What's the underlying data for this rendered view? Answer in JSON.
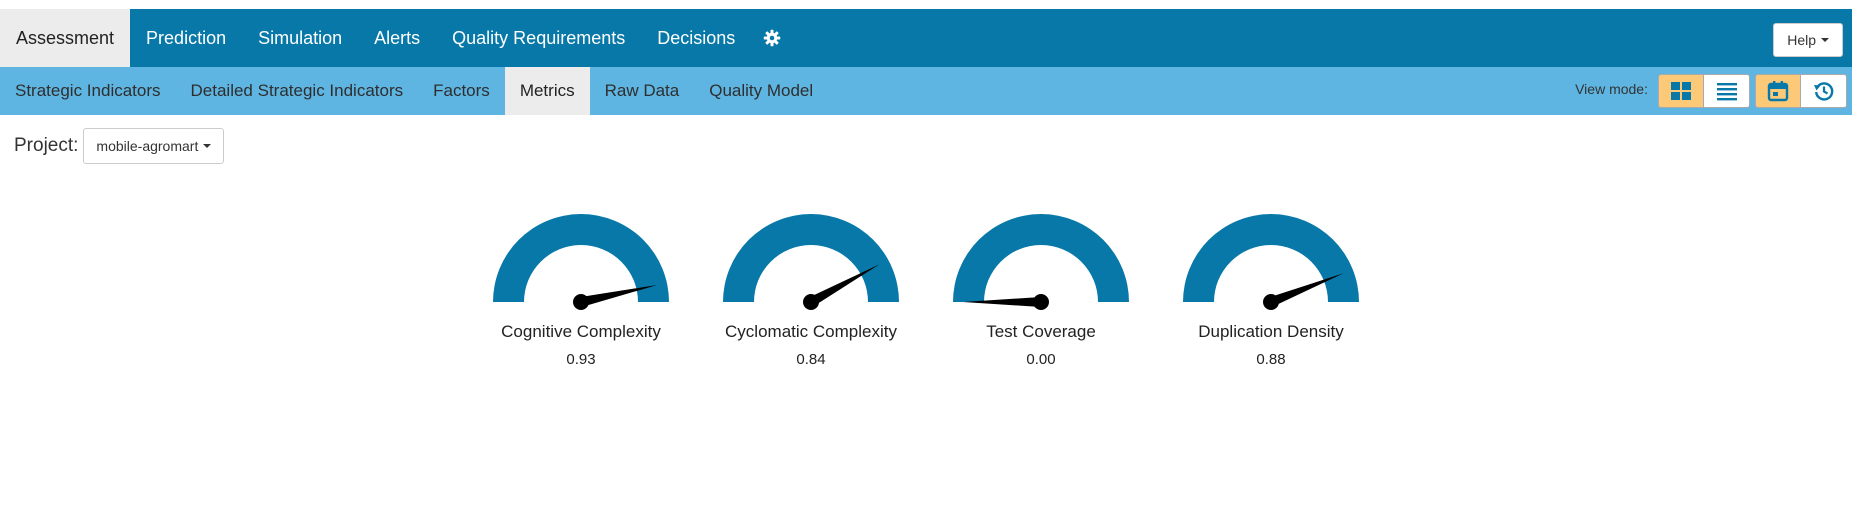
{
  "top_nav": {
    "items": [
      {
        "label": "Assessment",
        "active": true
      },
      {
        "label": "Prediction",
        "active": false
      },
      {
        "label": "Simulation",
        "active": false
      },
      {
        "label": "Alerts",
        "active": false
      },
      {
        "label": "Quality Requirements",
        "active": false
      },
      {
        "label": "Decisions",
        "active": false
      }
    ],
    "settings_icon": "gear-icon",
    "help_label": "Help"
  },
  "sub_nav": {
    "items": [
      {
        "label": "Strategic Indicators",
        "active": false
      },
      {
        "label": "Detailed Strategic Indicators",
        "active": false
      },
      {
        "label": "Factors",
        "active": false
      },
      {
        "label": "Metrics",
        "active": true
      },
      {
        "label": "Raw Data",
        "active": false
      },
      {
        "label": "Quality Model",
        "active": false
      }
    ],
    "view_mode_label": "View mode:",
    "view_mode_icons": [
      "grid-icon",
      "list-icon",
      "calendar-icon",
      "history-icon"
    ]
  },
  "project": {
    "label": "Project:",
    "selected": "mobile-agromart"
  },
  "colors": {
    "top_bar": "#0778a8",
    "sub_bar": "#5eb5e2",
    "gauge_arc": "#0778a8",
    "active_toggle": "#fbc978"
  },
  "gauges": [
    {
      "name": "Cognitive Complexity",
      "value": 0.93,
      "value_text": "0.93"
    },
    {
      "name": "Cyclomatic Complexity",
      "value": 0.84,
      "value_text": "0.84"
    },
    {
      "name": "Test Coverage",
      "value": 0.0,
      "value_text": "0.00"
    },
    {
      "name": "Duplication Density",
      "value": 0.88,
      "value_text": "0.88"
    }
  ]
}
